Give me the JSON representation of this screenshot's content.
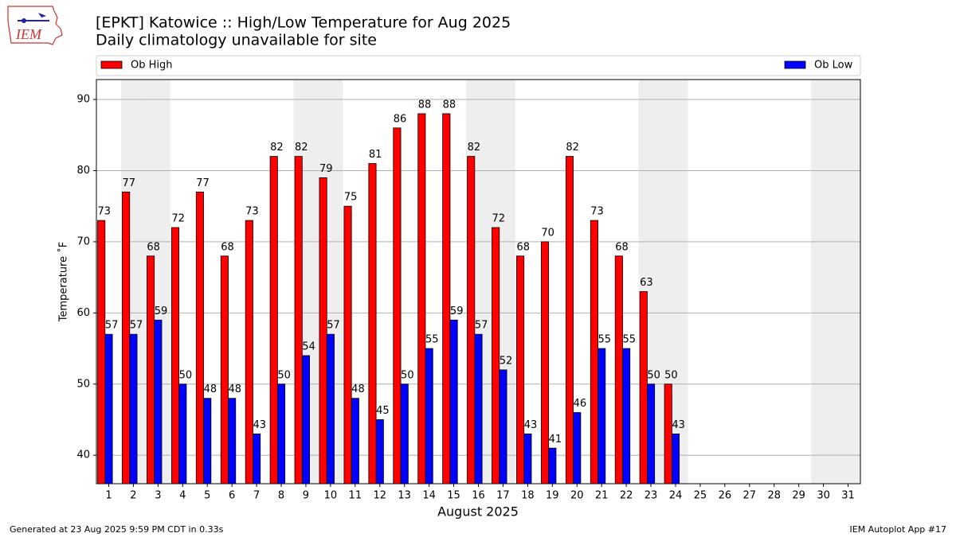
{
  "logo_text": "IEM",
  "footer_left": "Generated at 23 Aug 2025 9:59 PM CDT in 0.33s",
  "footer_right": "IEM Autoplot App #17",
  "chart_data": {
    "type": "bar",
    "title": "[EPKT] Katowice :: High/Low Temperature for Aug 2025",
    "subtitle": "Daily climatology unavailable for site",
    "x_label": "August 2025",
    "y_label": "Temperature ˚F",
    "x": [
      1,
      2,
      3,
      4,
      5,
      6,
      7,
      8,
      9,
      10,
      11,
      12,
      13,
      14,
      15,
      16,
      17,
      18,
      19,
      20,
      21,
      22,
      23,
      24,
      25,
      26,
      27,
      28,
      29,
      30,
      31
    ],
    "series": [
      {
        "name": "Ob High",
        "color": "#ff0000",
        "values": [
          73,
          77,
          68,
          72,
          77,
          68,
          73,
          82,
          82,
          79,
          75,
          81,
          86,
          88,
          88,
          82,
          72,
          68,
          70,
          82,
          73,
          68,
          63,
          50,
          null,
          null,
          null,
          null,
          null,
          null,
          null
        ]
      },
      {
        "name": "Ob Low",
        "color": "#0000ff",
        "values": [
          57,
          57,
          59,
          50,
          48,
          48,
          43,
          50,
          54,
          57,
          48,
          45,
          50,
          55,
          59,
          57,
          52,
          43,
          41,
          46,
          55,
          55,
          50,
          43,
          null,
          null,
          null,
          null,
          null,
          null,
          null
        ]
      }
    ],
    "weekend_days": [
      2,
      3,
      9,
      10,
      16,
      17,
      23,
      24,
      30,
      31
    ],
    "xlim": [
      0.5,
      31.5
    ],
    "xticks": [
      1,
      2,
      3,
      4,
      5,
      6,
      7,
      8,
      9,
      10,
      11,
      12,
      13,
      14,
      15,
      16,
      17,
      18,
      19,
      20,
      21,
      22,
      23,
      24,
      25,
      26,
      27,
      28,
      29,
      30,
      31
    ],
    "ylim": [
      36,
      92.8
    ],
    "yticks": [
      40,
      50,
      60,
      70,
      80,
      90
    ],
    "grid": true
  }
}
